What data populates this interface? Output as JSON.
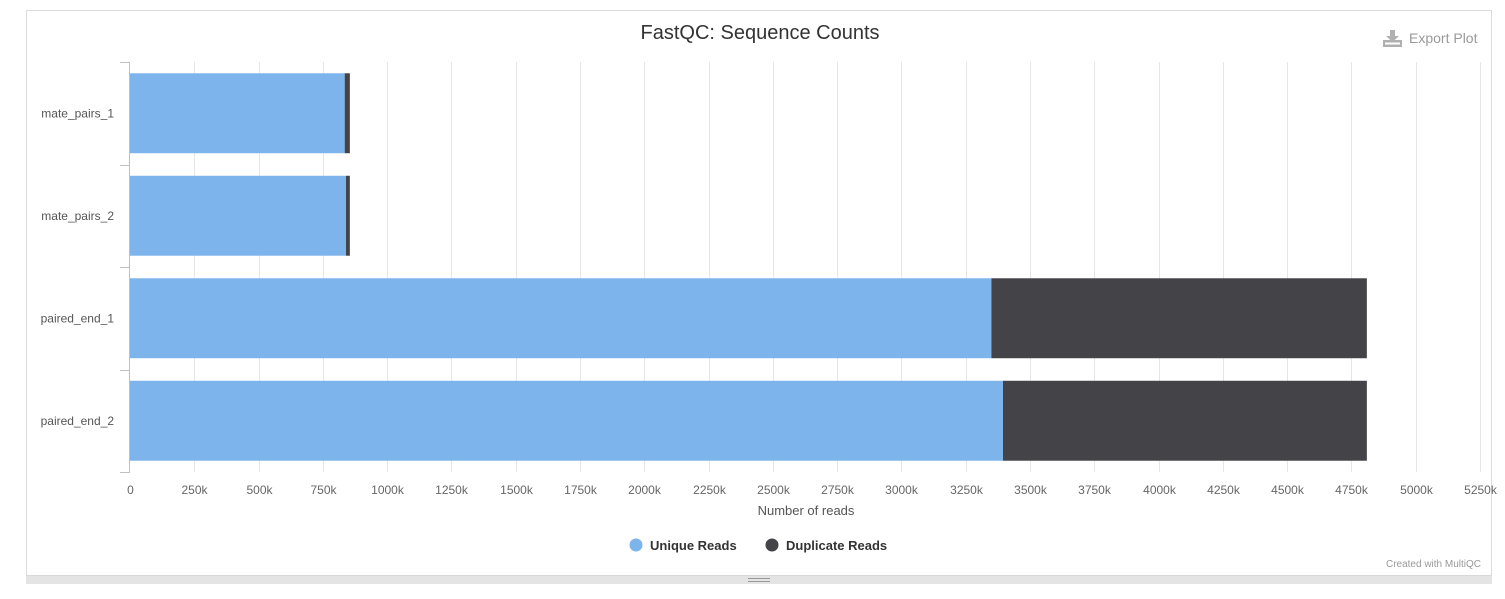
{
  "export": {
    "label": "Export Plot",
    "icon": "download-icon"
  },
  "credit": "Created with MultiQC",
  "colors": {
    "unique": "#7cb4eb",
    "duplicate": "#434348"
  },
  "chart_data": {
    "type": "bar",
    "orientation": "horizontal",
    "stacked": true,
    "title": "FastQC: Sequence Counts",
    "xlabel": "Number of reads",
    "ylabel": "",
    "categories": [
      "mate_pairs_1",
      "mate_pairs_2",
      "paired_end_1",
      "paired_end_2"
    ],
    "series": [
      {
        "name": "Unique Reads",
        "color": "#7cb4eb",
        "values": [
          835000,
          840000,
          3350000,
          3395000
        ]
      },
      {
        "name": "Duplicate Reads",
        "color": "#434348",
        "values": [
          20000,
          15000,
          1460000,
          1415000
        ]
      }
    ],
    "xlim": [
      0,
      5250000
    ],
    "xticks": [
      0,
      250000,
      500000,
      750000,
      1000000,
      1250000,
      1500000,
      1750000,
      2000000,
      2250000,
      2500000,
      2750000,
      3000000,
      3250000,
      3500000,
      3750000,
      4000000,
      4250000,
      4500000,
      4750000,
      5000000,
      5250000
    ],
    "xtick_labels": [
      "0",
      "250k",
      "500k",
      "750k",
      "1000k",
      "1250k",
      "1500k",
      "1750k",
      "2000k",
      "2250k",
      "2500k",
      "2750k",
      "3000k",
      "3250k",
      "3500k",
      "3750k",
      "4000k",
      "4250k",
      "4500k",
      "4750k",
      "5000k",
      "5250k"
    ],
    "grid": "vertical",
    "legend_position": "bottom-center"
  }
}
